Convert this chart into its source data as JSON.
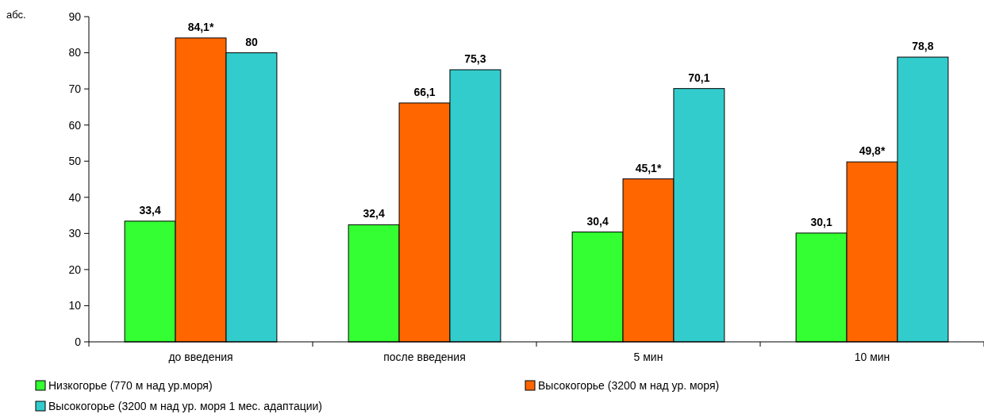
{
  "chart_data": {
    "type": "bar",
    "ylabel": "абс.",
    "categories": [
      "до введения",
      "после введения",
      "5 мин",
      "10 мин"
    ],
    "series": [
      {
        "name": "Низкогорье (770 м над ур.моря)",
        "color": "#33ff33",
        "values": [
          33.4,
          32.4,
          30.4,
          30.1
        ],
        "value_labels": [
          "33,4",
          "32,4",
          "30,4",
          "30,1"
        ]
      },
      {
        "name": "Высокогорье (3200 м над ур. моря)",
        "color": "#ff6600",
        "values": [
          84.1,
          66.1,
          45.1,
          49.8
        ],
        "value_labels": [
          "84,1*",
          "66,1",
          "45,1*",
          "49,8*"
        ]
      },
      {
        "name": "Высокогорье (3200 м над ур. моря 1 мес. адаптации)",
        "color": "#33cccc",
        "values": [
          80,
          75.3,
          70.1,
          78.8
        ],
        "value_labels": [
          "80",
          "75,3",
          "70,1",
          "78,8"
        ]
      }
    ],
    "ylim": [
      0,
      90
    ],
    "yticks": [
      0,
      10,
      20,
      30,
      40,
      50,
      60,
      70,
      80,
      90
    ],
    "grid": false,
    "legend": "bottom"
  }
}
